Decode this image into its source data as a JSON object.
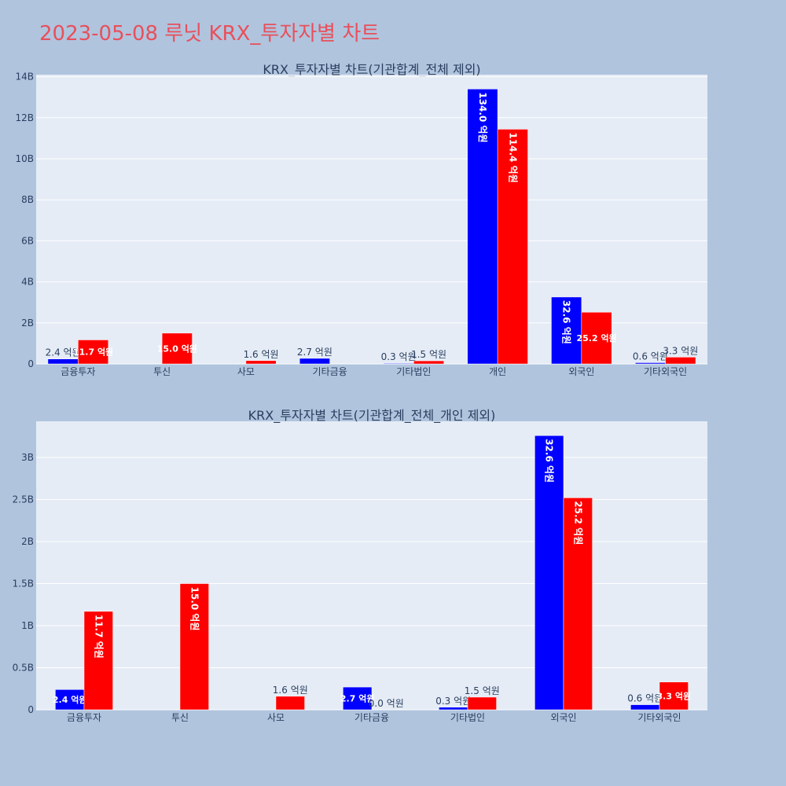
{
  "title": "2023-05-08 루닛 KRX_투자자별 차트",
  "colors": {
    "title": "#e8505b",
    "background": "#b0c4de",
    "plot_bg": "#e5ecf6",
    "buy": "#0000ff",
    "sell": "#ff0000"
  },
  "chart_data": [
    {
      "type": "bar",
      "title": "KRX_투자자별 차트(기관합계_전체 제외)",
      "categories": [
        "금융투자",
        "투신",
        "사모",
        "기타금융",
        "기타법인",
        "개인",
        "외국인",
        "기타외국인"
      ],
      "series": [
        {
          "color": "#0000ff",
          "values": [
            240000000,
            0,
            0,
            270000000,
            30000000,
            13400000000,
            3260000000,
            60000000
          ],
          "labels": [
            "2.4 억원",
            "",
            "",
            "2.7 억원",
            "0.3 억원",
            "134.0 억원",
            "32.6 억원",
            "0.6 억원"
          ]
        },
        {
          "color": "#ff0000",
          "values": [
            1170000000,
            1500000000,
            160000000,
            0,
            150000000,
            11440000000,
            2520000000,
            330000000
          ],
          "labels": [
            "11.7 억원",
            "15.0 억원",
            "1.6 억원",
            "",
            "1.5 억원",
            "114.4 억원",
            "25.2 억원",
            "3.3 억원"
          ]
        }
      ],
      "ylim": [
        0,
        14100000000
      ],
      "yticks": [
        0,
        2000000000,
        4000000000,
        6000000000,
        8000000000,
        10000000000,
        12000000000,
        14000000000
      ],
      "ytick_labels": [
        "0",
        "2B",
        "4B",
        "6B",
        "8B",
        "10B",
        "12B",
        "14B"
      ],
      "grid": true
    },
    {
      "type": "bar",
      "title": "KRX_투자자별 차트(기관합계_전체_개인 제외)",
      "categories": [
        "금융투자",
        "투신",
        "사모",
        "기타금융",
        "기타법인",
        "외국인",
        "기타외국인"
      ],
      "series": [
        {
          "color": "#0000ff",
          "values": [
            240000000,
            0,
            0,
            270000000,
            30000000,
            3260000000,
            60000000
          ],
          "labels": [
            "2.4 억원",
            "",
            "",
            "2.7 억원",
            "0.3 억원",
            "32.6 억원",
            "0.6 억원"
          ]
        },
        {
          "color": "#ff0000",
          "values": [
            1170000000,
            1500000000,
            160000000,
            0,
            150000000,
            2520000000,
            330000000
          ],
          "labels": [
            "11.7 억원",
            "15.0 억원",
            "1.6 억원",
            "0.0 억원",
            "1.5 억원",
            "25.2 억원",
            "3.3 억원"
          ]
        }
      ],
      "ylim": [
        0,
        3430000000
      ],
      "yticks": [
        0,
        500000000,
        1000000000,
        1500000000,
        2000000000,
        2500000000,
        3000000000
      ],
      "ytick_labels": [
        "0",
        "0.5B",
        "1B",
        "1.5B",
        "2B",
        "2.5B",
        "3B"
      ],
      "grid": true
    }
  ]
}
